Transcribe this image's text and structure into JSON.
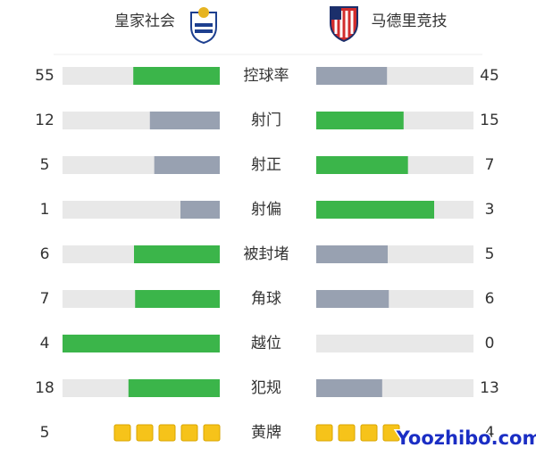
{
  "header": {
    "home": "皇家社会",
    "away": "马德里竞技"
  },
  "stats": [
    {
      "label": "控球率",
      "home": 55,
      "away": 45
    },
    {
      "label": "射门",
      "home": 12,
      "away": 15
    },
    {
      "label": "射正",
      "home": 5,
      "away": 7
    },
    {
      "label": "射偏",
      "home": 1,
      "away": 3
    },
    {
      "label": "被封堵",
      "home": 6,
      "away": 5
    },
    {
      "label": "角球",
      "home": 7,
      "away": 6
    },
    {
      "label": "越位",
      "home": 4,
      "away": 0
    },
    {
      "label": "犯规",
      "home": 18,
      "away": 13
    },
    {
      "label": "黄牌",
      "home": 5,
      "away": 4,
      "style": "cards"
    }
  ],
  "colors": {
    "leading": "#3bb54a",
    "trailing": "#98a1b1",
    "track": "#e8e8e8",
    "card": "#f6c31a"
  },
  "watermark": "Yoozhibo.com"
}
